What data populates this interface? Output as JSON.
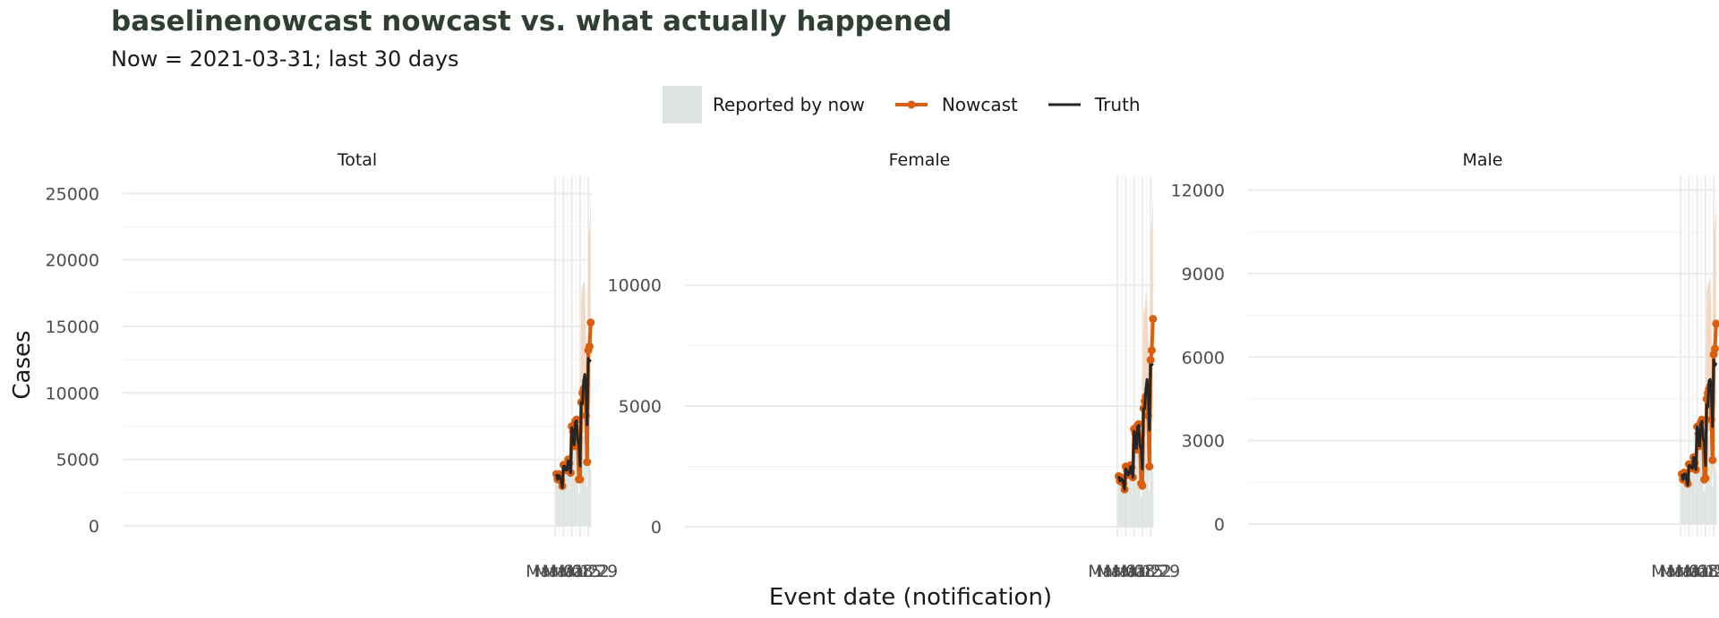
{
  "title": "baselinenowcast nowcast vs. what actually happened",
  "subtitle": "Now = 2021-03-31; last 30 days",
  "legend": [
    {
      "label": "Reported by now",
      "key": "band"
    },
    {
      "label": "Nowcast",
      "key": "line-point"
    },
    {
      "label": "Truth",
      "key": "line"
    }
  ],
  "colors": {
    "reported": "#dde3de",
    "interval": "#f3d4bb",
    "nowcast": "#d95f0e",
    "truth": "#262626",
    "grid": "#ebebeb"
  },
  "chart_data": {
    "type": "line",
    "xlabel": "Event date (notification)",
    "ylabel": "Cases",
    "x": [
      "2021-03-02",
      "2021-03-03",
      "2021-03-04",
      "2021-03-05",
      "2021-03-06",
      "2021-03-07",
      "2021-03-08",
      "2021-03-09",
      "2021-03-10",
      "2021-03-11",
      "2021-03-12",
      "2021-03-13",
      "2021-03-14",
      "2021-03-15",
      "2021-03-16",
      "2021-03-17",
      "2021-03-18",
      "2021-03-19",
      "2021-03-20",
      "2021-03-21",
      "2021-03-22",
      "2021-03-23",
      "2021-03-24",
      "2021-03-25",
      "2021-03-26",
      "2021-03-27",
      "2021-03-28",
      "2021-03-29",
      "2021-03-30",
      "2021-03-31"
    ],
    "x_ticks": [
      "Mar 01",
      "Mar 08",
      "Mar 15",
      "Mar 22",
      "Mar 29"
    ],
    "x_tick_dates": [
      "2021-03-01",
      "2021-03-08",
      "2021-03-15",
      "2021-03-22",
      "2021-03-29"
    ],
    "x_range": [
      "2020-02-29T12:00",
      "2021-03-31T22:00"
    ],
    "grid": true,
    "legend_position": "top",
    "panels": [
      {
        "name": "Total",
        "ylim": [
          -800,
          26300
        ],
        "y_ticks": [
          0,
          5000,
          10000,
          15000,
          20000,
          25000
        ],
        "y_tick_labels": [
          "0",
          "5000",
          "10000",
          "15000",
          "20000",
          "25000"
        ],
        "reported": [
          3850,
          3600,
          3900,
          3800,
          3500,
          3100,
          4500,
          4500,
          4200,
          4200,
          4800,
          4600,
          4000,
          7400,
          7000,
          6000,
          7800,
          8000,
          6500,
          2400,
          2400,
          6400,
          6700,
          6800,
          6800,
          5300,
          2900,
          7100,
          6000,
          4300
        ],
        "nowcast": [
          3900,
          3500,
          3900,
          3800,
          3400,
          3000,
          4600,
          4500,
          4300,
          4200,
          5000,
          4700,
          4000,
          7500,
          7100,
          6000,
          7900,
          8000,
          6500,
          3500,
          3500,
          9300,
          10000,
          10300,
          10300,
          8300,
          4800,
          13200,
          13500,
          15300
        ],
        "lower": [
          3900,
          3500,
          3900,
          3800,
          3400,
          3000,
          4600,
          4500,
          4300,
          4200,
          5000,
          4700,
          4000,
          7500,
          7100,
          6000,
          7900,
          8000,
          6500,
          4500,
          4500,
          6600,
          6900,
          7000,
          7000,
          5800,
          3400,
          8700,
          8800,
          9500
        ],
        "upper": [
          3900,
          3500,
          3900,
          3800,
          3400,
          3000,
          4600,
          4500,
          4300,
          4200,
          5000,
          4700,
          4000,
          7500,
          7100,
          6000,
          7900,
          8000,
          6500,
          5000,
          5500,
          17200,
          18000,
          18300,
          18300,
          14300,
          8200,
          22100,
          22300,
          25200
        ],
        "truth": [
          3900,
          3500,
          3800,
          3700,
          3400,
          2900,
          4500,
          4500,
          4200,
          4200,
          4900,
          4600,
          4000,
          7400,
          7000,
          6100,
          7800,
          7900,
          6500,
          6100,
          4500,
          9300,
          9200,
          10900,
          11400,
          10400,
          7600,
          12600,
          12400,
          12500
        ]
      },
      {
        "name": "Female",
        "ylim": [
          -400,
          14500
        ],
        "y_ticks": [
          0,
          5000,
          10000
        ],
        "y_tick_labels": [
          "0",
          "5000",
          "10000"
        ],
        "reported": [
          2050,
          1900,
          2000,
          1950,
          1750,
          1550,
          2450,
          2300,
          2150,
          2200,
          2500,
          2400,
          2000,
          3900,
          3700,
          3150,
          4150,
          4200,
          3400,
          1250,
          1200,
          3350,
          3500,
          3550,
          3550,
          2900,
          1500,
          3750,
          3250,
          2250
        ],
        "nowcast": [
          2100,
          1900,
          2050,
          1950,
          1800,
          1550,
          2500,
          2350,
          2150,
          2250,
          2550,
          2450,
          2050,
          4050,
          3850,
          3200,
          4200,
          4250,
          3450,
          1800,
          1700,
          4900,
          5200,
          5400,
          5400,
          4600,
          2500,
          6900,
          7300,
          8600
        ],
        "lower": [
          2100,
          1900,
          2050,
          1950,
          1800,
          1550,
          2500,
          2350,
          2150,
          2250,
          2550,
          2450,
          2050,
          4050,
          3850,
          3200,
          4200,
          4250,
          3450,
          2400,
          2400,
          3500,
          3700,
          3800,
          3800,
          3100,
          1800,
          4500,
          4700,
          5300
        ],
        "upper": [
          2100,
          1900,
          2050,
          1950,
          1800,
          1550,
          2500,
          2350,
          2150,
          2250,
          2550,
          2450,
          2050,
          4050,
          3850,
          3200,
          4200,
          4250,
          3450,
          2700,
          2900,
          8800,
          9000,
          9800,
          9300,
          7900,
          4300,
          11900,
          12500,
          13700
        ],
        "truth": [
          2100,
          1900,
          2000,
          1950,
          1800,
          1550,
          2400,
          2300,
          2150,
          2200,
          2500,
          2400,
          2050,
          3950,
          3800,
          3250,
          4150,
          4200,
          3400,
          3200,
          2400,
          4900,
          4900,
          5700,
          6100,
          5600,
          4000,
          6700,
          6700,
          6750
        ]
      },
      {
        "name": "Male",
        "ylim": [
          -450,
          12500
        ],
        "y_ticks": [
          0,
          3000,
          6000,
          9000,
          12000
        ],
        "y_tick_labels": [
          "0",
          "3000",
          "6000",
          "9000",
          "12000"
        ],
        "reported": [
          1750,
          1650,
          1800,
          1750,
          1550,
          1400,
          2100,
          2100,
          2050,
          2000,
          2350,
          2150,
          1900,
          3400,
          3150,
          2800,
          3550,
          3700,
          3100,
          1150,
          1150,
          3000,
          3150,
          3200,
          3200,
          2400,
          1350,
          3350,
          2800,
          1950
        ],
        "nowcast": [
          1800,
          1600,
          1850,
          1800,
          1600,
          1450,
          2150,
          2150,
          2100,
          2000,
          2400,
          2200,
          1950,
          3500,
          3250,
          2800,
          3650,
          3750,
          3100,
          1600,
          1650,
          4500,
          4700,
          4850,
          4950,
          3750,
          2300,
          6100,
          6300,
          7200
        ],
        "lower": [
          1800,
          1600,
          1850,
          1800,
          1600,
          1450,
          2150,
          2150,
          2100,
          2000,
          2400,
          2200,
          1950,
          3500,
          3250,
          2800,
          3650,
          3750,
          3100,
          2100,
          2100,
          3150,
          3300,
          3350,
          3350,
          2700,
          1550,
          4000,
          4100,
          4300
        ],
        "upper": [
          1800,
          1600,
          1850,
          1800,
          1600,
          1450,
          2150,
          2150,
          2100,
          2000,
          2400,
          2200,
          1950,
          3500,
          3250,
          2800,
          3650,
          3750,
          3100,
          2400,
          2700,
          8300,
          8600,
          8700,
          8900,
          7300,
          3900,
          11000,
          10500,
          11800
        ],
        "truth": [
          1800,
          1600,
          1800,
          1800,
          1600,
          1400,
          2100,
          2100,
          2050,
          2000,
          2400,
          2150,
          1950,
          3500,
          3200,
          2800,
          3600,
          3700,
          3100,
          2900,
          2100,
          4300,
          4200,
          5150,
          5200,
          4700,
          3500,
          5900,
          5700,
          5800
        ]
      }
    ]
  }
}
